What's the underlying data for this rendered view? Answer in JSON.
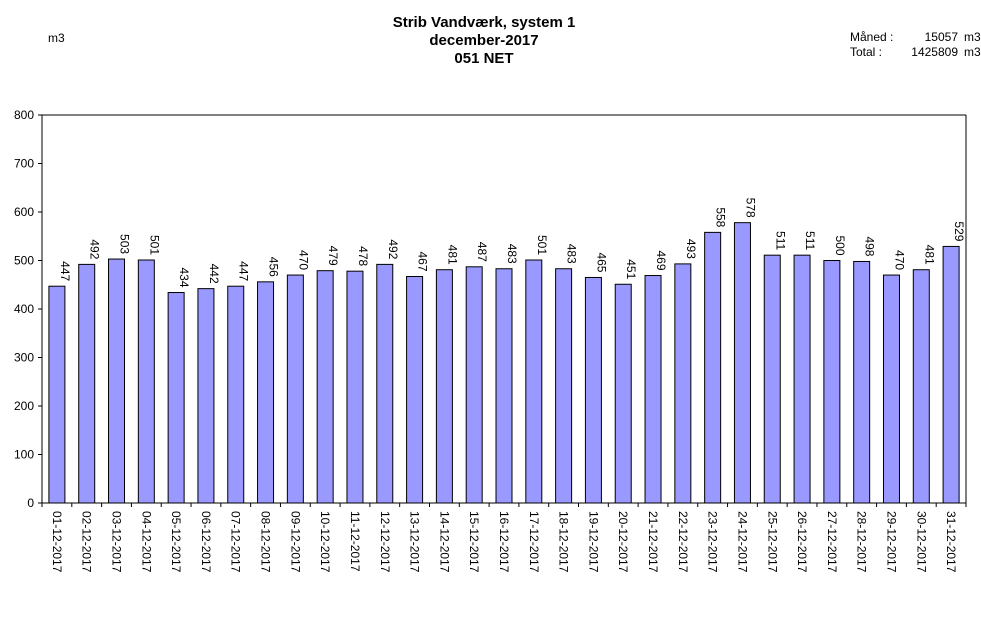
{
  "chart_data": {
    "type": "bar",
    "title": "Strib Vandværk, system 1",
    "subtitle": "december-2017",
    "subtitle2": "051 NET",
    "ylabel": "m3",
    "xlabel": "",
    "ylim": [
      0,
      800
    ],
    "yticks": [
      0,
      100,
      200,
      300,
      400,
      500,
      600,
      700,
      800
    ],
    "grid": false,
    "legend": "none",
    "bar_color": "#9999ff",
    "bar_stroke": "#000000",
    "categories": [
      "01-12-2017",
      "02-12-2017",
      "03-12-2017",
      "04-12-2017",
      "05-12-2017",
      "06-12-2017",
      "07-12-2017",
      "08-12-2017",
      "09-12-2017",
      "10-12-2017",
      "11-12-2017",
      "12-12-2017",
      "13-12-2017",
      "14-12-2017",
      "15-12-2017",
      "16-12-2017",
      "17-12-2017",
      "18-12-2017",
      "19-12-2017",
      "20-12-2017",
      "21-12-2017",
      "22-12-2017",
      "23-12-2017",
      "24-12-2017",
      "25-12-2017",
      "26-12-2017",
      "27-12-2017",
      "28-12-2017",
      "29-12-2017",
      "30-12-2017",
      "31-12-2017"
    ],
    "values": [
      447,
      492,
      503,
      501,
      434,
      442,
      447,
      456,
      470,
      479,
      478,
      492,
      467,
      481,
      487,
      483,
      501,
      483,
      465,
      451,
      469,
      493,
      558,
      578,
      511,
      511,
      500,
      498,
      470,
      481,
      529
    ]
  },
  "summary": {
    "month_label": "Måned :",
    "month_value": "15057",
    "month_unit": "m3",
    "total_label": "Total :",
    "total_value": "1425809",
    "total_unit": "m3"
  }
}
